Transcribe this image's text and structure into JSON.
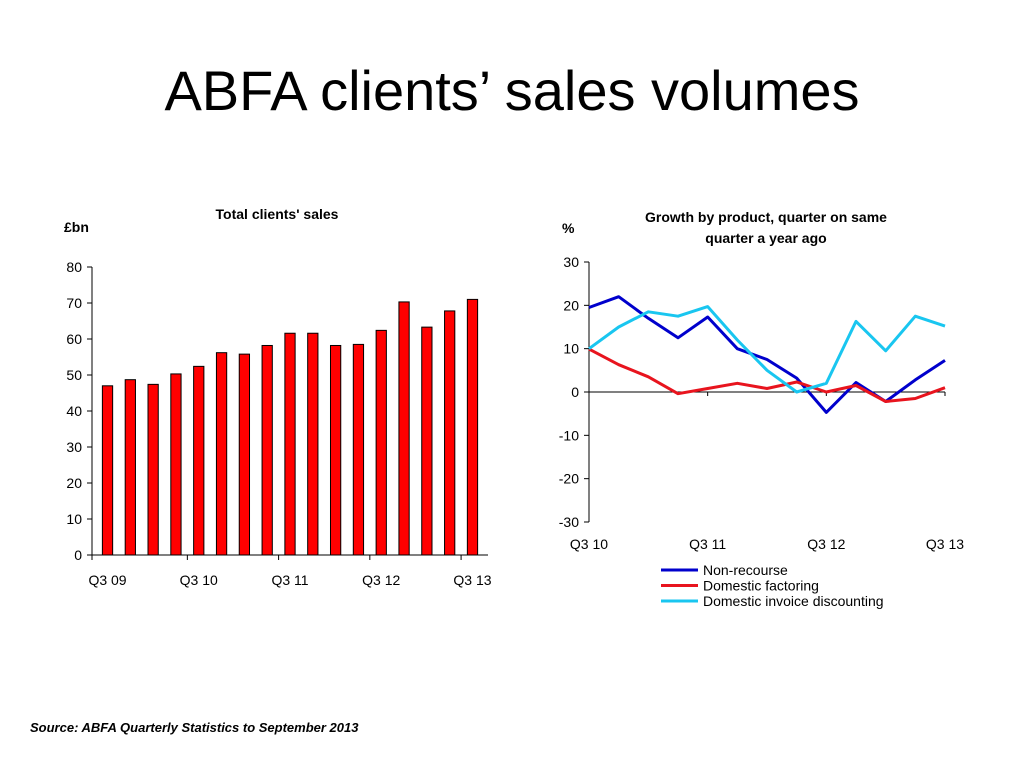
{
  "slide": {
    "title": "ABFA clients’ sales volumes",
    "source": "Source: ABFA Quarterly Statistics to September 2013"
  },
  "chart_data": [
    {
      "type": "bar",
      "title": "Total clients' sales",
      "ylabel": "£bn",
      "xlabel": "",
      "ylim": [
        0,
        80
      ],
      "yticks": [
        0,
        10,
        20,
        30,
        40,
        50,
        60,
        70,
        80
      ],
      "categories": [
        "Q3 09",
        "Q4 09",
        "Q1 10",
        "Q2 10",
        "Q3 10",
        "Q4 10",
        "Q1 11",
        "Q2 11",
        "Q3 11",
        "Q4 11",
        "Q1 12",
        "Q2 12",
        "Q3 12",
        "Q4 12",
        "Q1 13",
        "Q2 13",
        "Q3 13"
      ],
      "xtick_labels": [
        "Q3 09",
        "Q3 10",
        "Q3 11",
        "Q3 12",
        "Q3 13"
      ],
      "values": [
        47,
        48.7,
        47.4,
        50.3,
        52.4,
        56.2,
        55.8,
        58.2,
        61.6,
        61.6,
        58.2,
        58.5,
        62.4,
        70.3,
        63.3,
        67.8,
        71
      ],
      "bar_color": "#ff0000",
      "grid": false
    },
    {
      "type": "line",
      "title": "Growth by product, quarter on same quarter a year ago",
      "title_lines": [
        "Growth by product, quarter on same",
        "quarter a year ago"
      ],
      "ylabel": "%",
      "xlabel": "",
      "ylim": [
        -30,
        30
      ],
      "yticks": [
        -30,
        -20,
        -10,
        0,
        10,
        20,
        30
      ],
      "categories": [
        "Q3 10",
        "Q4 10",
        "Q1 11",
        "Q2 11",
        "Q3 11",
        "Q4 11",
        "Q1 12",
        "Q2 12",
        "Q3 12",
        "Q4 12",
        "Q1 13",
        "Q2 13",
        "Q3 13"
      ],
      "xtick_labels": [
        "Q3 10",
        "Q3 11",
        "Q3 12",
        "Q3 13"
      ],
      "legend": "bottom",
      "grid": false,
      "series": [
        {
          "name": "Non-recourse",
          "color": "#0000cc",
          "values": [
            19.5,
            22,
            17,
            12.5,
            17.3,
            10,
            7.5,
            3.2,
            -4.7,
            2.2,
            -2.2,
            2.8,
            7.3
          ]
        },
        {
          "name": "Domestic factoring",
          "color": "#e8141e",
          "values": [
            9.9,
            6.3,
            3.5,
            -0.4,
            0.8,
            2,
            0.8,
            2.3,
            0,
            1.5,
            -2.2,
            -1.5,
            1
          ]
        },
        {
          "name": "Domestic invoice discounting",
          "color": "#19c6f0",
          "values": [
            10,
            15,
            18.5,
            17.5,
            19.7,
            12,
            5,
            0,
            2,
            16.3,
            9.5,
            17.5,
            15.2
          ]
        }
      ]
    }
  ]
}
